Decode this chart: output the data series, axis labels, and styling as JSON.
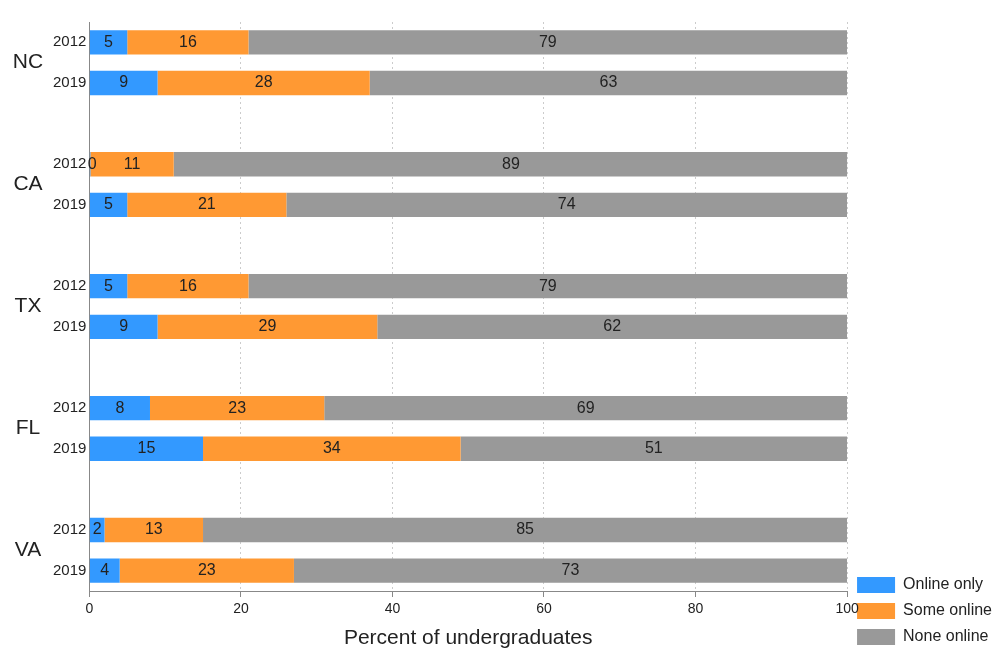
{
  "chart_data": {
    "type": "bar",
    "orientation": "horizontal",
    "stacked": true,
    "xlabel": "Percent of undergraduates",
    "categories": [
      "2012",
      "2019",
      null,
      "2012",
      "2019",
      null,
      "2012",
      "2019",
      null,
      "2012",
      "2019",
      null,
      "2012",
      "2019"
    ],
    "series": [
      {
        "name": "Online only",
        "color": "#3399ff",
        "values": [
          5,
          9,
          null,
          0,
          5,
          null,
          5,
          9,
          null,
          8,
          15,
          null,
          2,
          4
        ],
        "value_labels": [
          "5",
          "9",
          null,
          "0",
          "5",
          null,
          "5",
          "9",
          null,
          "8",
          "15",
          null,
          "2",
          "4"
        ]
      },
      {
        "name": "Some online",
        "color": "#ff9933",
        "values": [
          16,
          28,
          null,
          11,
          21,
          null,
          16,
          29,
          null,
          23,
          34,
          null,
          13,
          23
        ],
        "value_labels": [
          "16",
          "28",
          null,
          "11",
          "21",
          null,
          "16",
          "29",
          null,
          "23",
          "34",
          null,
          "13",
          "23"
        ]
      },
      {
        "name": "None online",
        "color": "#999999",
        "values": [
          79,
          63,
          null,
          89,
          74,
          null,
          79,
          62,
          null,
          69,
          51,
          null,
          85,
          73
        ],
        "value_labels": [
          "79",
          "63",
          null,
          "89",
          "74",
          null,
          "79",
          "62",
          null,
          "69",
          "51",
          null,
          "85",
          "73"
        ]
      }
    ],
    "xlim": [
      0,
      100
    ],
    "xticks": [
      0,
      20,
      40,
      60,
      80,
      100
    ],
    "grid": "x",
    "legend": "bottom right",
    "annotations": [
      "NC",
      "CA",
      "TX",
      "FL",
      "VA"
    ]
  }
}
